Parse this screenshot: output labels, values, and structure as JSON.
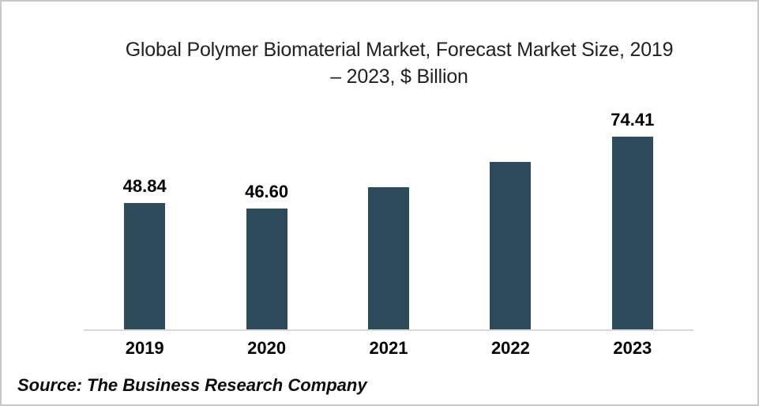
{
  "chart_data": {
    "type": "bar",
    "title": "Global Polymer Biomaterial Market, Forecast Market Size, 2019 – 2023, $ Billion",
    "title_line1": "Global Polymer Biomaterial Market, Forecast Market Size, 2019",
    "title_line2": "– 2023, $ Billion",
    "categories": [
      "2019",
      "2020",
      "2021",
      "2022",
      "2023"
    ],
    "values": [
      48.84,
      46.6,
      55.0,
      64.7,
      74.41
    ],
    "labels": [
      "48.84",
      "46.60",
      "",
      "",
      "74.41"
    ],
    "xlabel": "",
    "ylabel": "$ Billion",
    "ylim": [
      0,
      80
    ],
    "grid": false,
    "legend": "none",
    "bar_color": "#2d4b5b",
    "axis_line_color": "#d9d9d9"
  },
  "footer": {
    "source": "Source: The Business Research Company"
  }
}
